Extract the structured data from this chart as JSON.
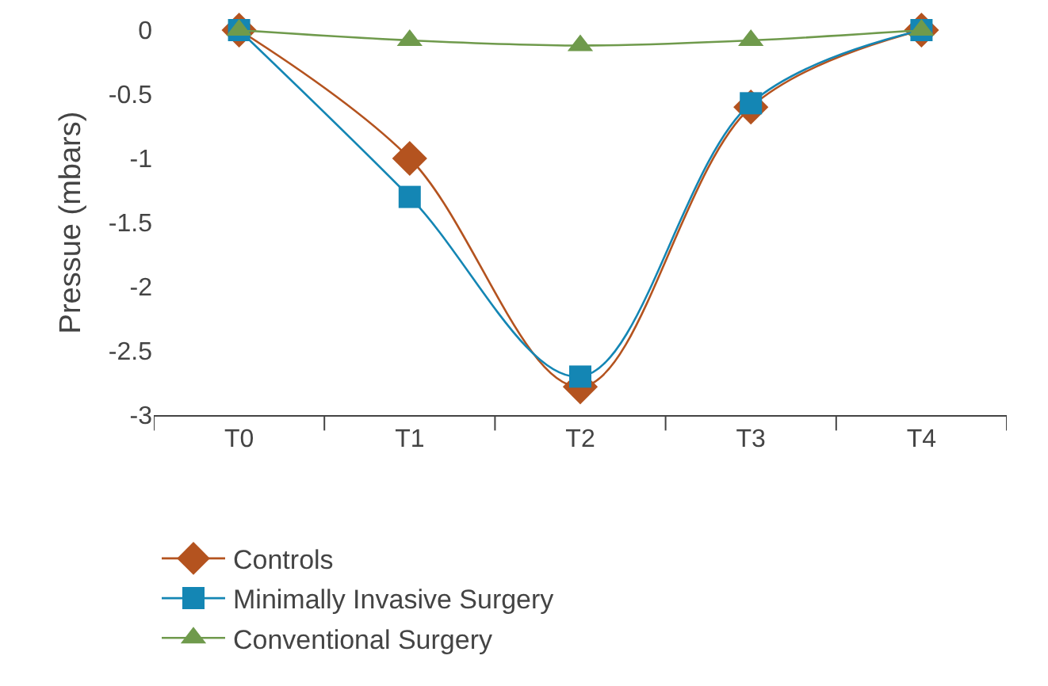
{
  "chart_data": {
    "type": "line",
    "ylabel": "Pressue (mbars)",
    "categories": [
      "T0",
      "T1",
      "T2",
      "T3",
      "T4"
    ],
    "series": [
      {
        "name": "Controls",
        "color": "#b4531f",
        "marker": "diamond",
        "values": [
          0,
          -1,
          -2.78,
          -0.6,
          0
        ]
      },
      {
        "name": "Minimally Invasive Surgery",
        "color": "#1486b4",
        "marker": "square",
        "values": [
          0,
          -1.3,
          -2.7,
          -0.57,
          0
        ]
      },
      {
        "name": "Conventional Surgery",
        "color": "#6f9a4c",
        "marker": "triangle",
        "values": [
          0,
          -0.08,
          -0.12,
          -0.08,
          0
        ]
      }
    ],
    "ylim": [
      -3,
      0
    ],
    "yticks": [
      -3,
      -2.5,
      -2,
      -1.5,
      -1,
      -0.5,
      0
    ],
    "grid": false,
    "legend": "bottom",
    "line_style": "solid"
  }
}
